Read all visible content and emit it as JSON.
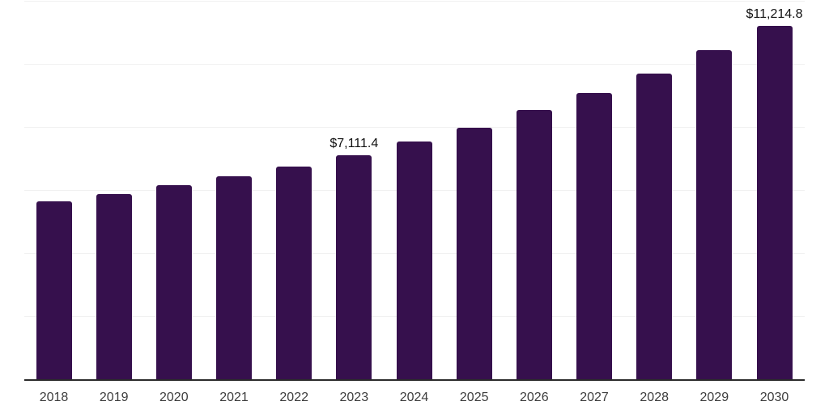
{
  "chart_data": {
    "type": "bar",
    "title": "",
    "xlabel": "",
    "ylabel": "",
    "categories": [
      "2018",
      "2019",
      "2020",
      "2021",
      "2022",
      "2023",
      "2024",
      "2025",
      "2026",
      "2027",
      "2028",
      "2029",
      "2030"
    ],
    "values": [
      5650,
      5880,
      6150,
      6445,
      6750,
      7111.4,
      7545,
      7975,
      8530,
      9085,
      9705,
      10425,
      11214.8
    ],
    "data_labels": [
      {
        "category": "2023",
        "text": "$7,111.4"
      },
      {
        "category": "2030",
        "text": "$11,214.8"
      }
    ],
    "ylim": [
      0,
      12000
    ],
    "grid_step": 2000,
    "grid": "horizontal",
    "y_tick_labels_visible": false,
    "legend_position": "none",
    "bar_color": "#36104D"
  },
  "colors": {
    "background": "#ffffff",
    "bar": "#36104D",
    "gridline": "#f1f1f1",
    "axis_line": "#2b2b2b",
    "tick_label": "#3d3d3d",
    "data_label": "#111111"
  }
}
